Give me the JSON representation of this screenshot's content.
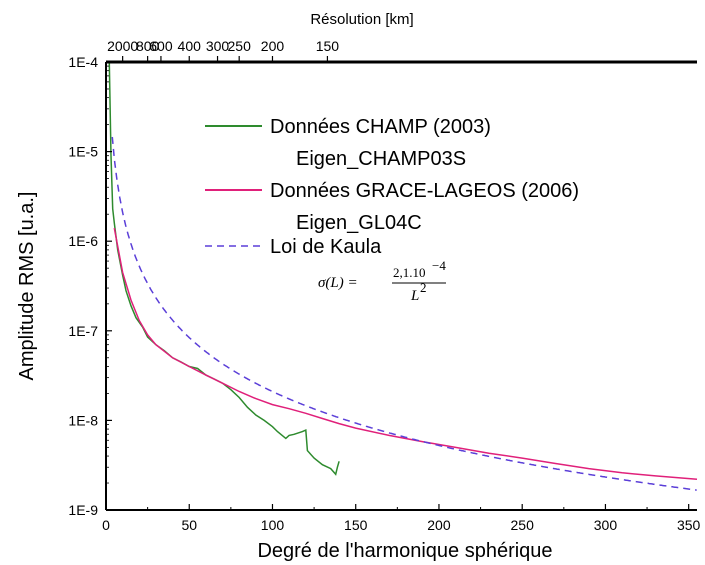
{
  "chart_data": {
    "type": "line",
    "title": "",
    "xlabel": "Degré de l'harmonique sphérique",
    "ylabel": "Amplitude RMS [u.a.]",
    "top_axis_label": "Résolution [km]",
    "xlim": [
      0,
      355
    ],
    "ylim": [
      1e-09,
      0.0001
    ],
    "y_scale": "log",
    "x_ticks": [
      "0",
      "50",
      "100",
      "150",
      "200",
      "250",
      "300",
      "350"
    ],
    "x_tick_values": [
      0,
      50,
      100,
      150,
      200,
      250,
      300,
      350
    ],
    "y_ticks": [
      "1E-9",
      "1E-8",
      "1E-7",
      "1E-6",
      "1E-5",
      "1E-4"
    ],
    "y_tick_values": [
      1e-09,
      1e-08,
      1e-07,
      1e-06,
      1e-05,
      0.0001
    ],
    "top_ticks": [
      {
        "label": "2000",
        "degree": 10
      },
      {
        "label": "800",
        "degree": 25
      },
      {
        "label": "600",
        "degree": 33
      },
      {
        "label": "400",
        "degree": 50
      },
      {
        "label": "300",
        "degree": 67
      },
      {
        "label": "250",
        "degree": 80
      },
      {
        "label": "200",
        "degree": 100
      },
      {
        "label": "150",
        "degree": 133
      }
    ],
    "legend_position": "top-right",
    "series": [
      {
        "name": "Données CHAMP (2003)",
        "name2": "Eigen_CHAMP03S",
        "color": "#2e8b2e",
        "style": "solid",
        "points": [
          [
            2,
            0.0001
          ],
          [
            3,
            9e-06
          ],
          [
            4,
            2.3e-06
          ],
          [
            5,
            1.6e-06
          ],
          [
            7,
            8e-07
          ],
          [
            10,
            4.2e-07
          ],
          [
            12,
            2.8e-07
          ],
          [
            15,
            1.9e-07
          ],
          [
            18,
            1.4e-07
          ],
          [
            22,
            1.1e-07
          ],
          [
            25,
            8.5e-08
          ],
          [
            30,
            7e-08
          ],
          [
            35,
            6e-08
          ],
          [
            40,
            5e-08
          ],
          [
            45,
            4.5e-08
          ],
          [
            50,
            4e-08
          ],
          [
            55,
            3.8e-08
          ],
          [
            60,
            3.2e-08
          ],
          [
            65,
            2.9e-08
          ],
          [
            70,
            2.6e-08
          ],
          [
            75,
            2.2e-08
          ],
          [
            80,
            1.8e-08
          ],
          [
            85,
            1.4e-08
          ],
          [
            90,
            1.15e-08
          ],
          [
            95,
            1e-08
          ],
          [
            100,
            8.5e-09
          ],
          [
            103,
            7.5e-09
          ],
          [
            108,
            6.3e-09
          ],
          [
            110,
            6.8e-09
          ],
          [
            113,
            7e-09
          ],
          [
            118,
            7.5e-09
          ],
          [
            120,
            7.8e-09
          ],
          [
            121,
            4.6e-09
          ],
          [
            125,
            3.8e-09
          ],
          [
            130,
            3.2e-09
          ],
          [
            135,
            2.9e-09
          ],
          [
            138,
            2.5e-09
          ],
          [
            139,
            3e-09
          ],
          [
            140,
            3.5e-09
          ]
        ]
      },
      {
        "name": "Données GRACE-LAGEOS (2006)",
        "name2": "Eigen_GL04C",
        "color": "#e0207a",
        "style": "solid",
        "points": [
          [
            5,
            1.4e-06
          ],
          [
            10,
            4.5e-07
          ],
          [
            15,
            2.2e-07
          ],
          [
            20,
            1.3e-07
          ],
          [
            25,
            9e-08
          ],
          [
            30,
            7e-08
          ],
          [
            40,
            5e-08
          ],
          [
            50,
            4e-08
          ],
          [
            60,
            3.2e-08
          ],
          [
            70,
            2.6e-08
          ],
          [
            80,
            2.1e-08
          ],
          [
            90,
            1.75e-08
          ],
          [
            100,
            1.5e-08
          ],
          [
            110,
            1.35e-08
          ],
          [
            120,
            1.2e-08
          ],
          [
            130,
            1.05e-08
          ],
          [
            140,
            9.2e-09
          ],
          [
            150,
            8.2e-09
          ],
          [
            170,
            6.8e-09
          ],
          [
            190,
            5.8e-09
          ],
          [
            210,
            5e-09
          ],
          [
            230,
            4.3e-09
          ],
          [
            250,
            3.8e-09
          ],
          [
            270,
            3.3e-09
          ],
          [
            290,
            2.9e-09
          ],
          [
            310,
            2.6e-09
          ],
          [
            330,
            2.4e-09
          ],
          [
            355,
            2.2e-09
          ]
        ]
      },
      {
        "name": "Loi de Kaula",
        "color": "#5b3fd8",
        "style": "dashed",
        "formula": {
          "lhs": "σ(L) =",
          "numerator": "2,1.10",
          "exponent": "−4",
          "denominator": "L",
          "denominator_exp": "2"
        },
        "coefficient": 0.00021,
        "x_range": [
          3.8,
          355
        ]
      }
    ]
  }
}
